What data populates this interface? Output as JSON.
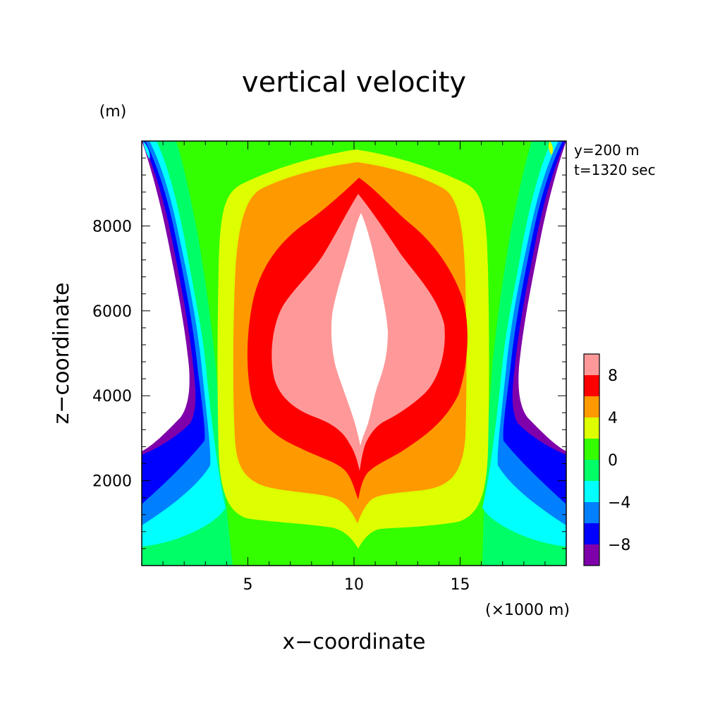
{
  "chart_data": {
    "type": "contour",
    "title": "vertical velocity",
    "xlabel": "x−coordinate",
    "ylabel": "z−coordinate",
    "x_unit": "(×1000 m)",
    "y_unit": "(m)",
    "annotations": [
      "y=200 m",
      "t=1320 sec"
    ],
    "xlim": [
      0,
      20
    ],
    "ylim": [
      0,
      10000
    ],
    "x_ticks": [
      5,
      10,
      15
    ],
    "x_tick_labels": [
      "5",
      "10",
      "15"
    ],
    "y_ticks": [
      2000,
      4000,
      6000,
      8000
    ],
    "y_tick_labels": [
      "2000",
      "4000",
      "6000",
      "8000"
    ],
    "colorbar": {
      "levels": [
        -10,
        -8,
        -6,
        -4,
        -2,
        0,
        2,
        4,
        6,
        8,
        10
      ],
      "labels": [
        "−8",
        "−4",
        "0",
        "4",
        "8"
      ],
      "label_values": [
        -8,
        -4,
        0,
        4,
        8
      ],
      "colors": [
        "#7f00aa",
        "#0000ff",
        "#0080ff",
        "#00ffff",
        "#00ff66",
        "#33ff00",
        "#ddff00",
        "#ff9900",
        "#ff0000",
        "#ff9999"
      ]
    },
    "regions": [
      {
        "level": "< -8",
        "color": "#7f00aa",
        "note": "downdraft edges, lower sides"
      },
      {
        "level": "> 10",
        "color": "#ffffff",
        "note": "core, x≈10, z≈2900–8300"
      }
    ],
    "grid": false
  }
}
